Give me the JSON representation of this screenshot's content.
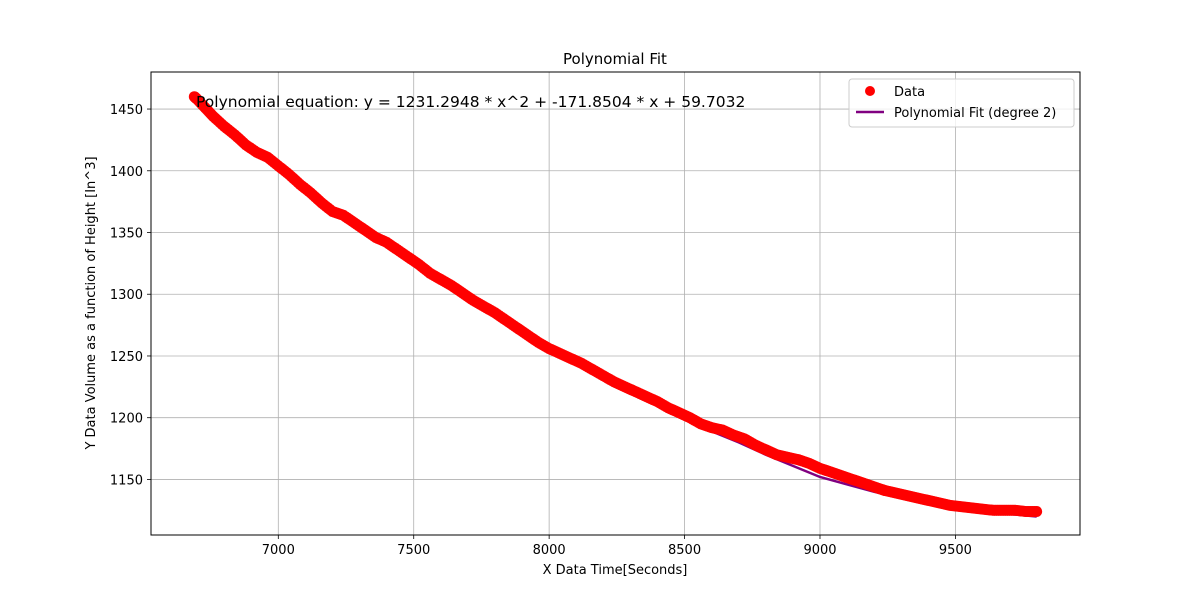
{
  "chart_data": {
    "type": "scatter",
    "title": "Polynomial Fit",
    "xlabel": "X Data Time[Seconds]",
    "ylabel": "Y Data Volume as a function of Height [In^3]",
    "annotation": "Polynomial equation: y = 1231.2948 * x^2 + -171.8504 * x + 59.7032",
    "xlim": [
      6530,
      9960
    ],
    "ylim": [
      1105,
      1480
    ],
    "xticks": [
      7000,
      7500,
      8000,
      8500,
      9000,
      9500
    ],
    "yticks": [
      1150,
      1200,
      1250,
      1300,
      1350,
      1400,
      1450
    ],
    "grid": true,
    "legend_position": "top-right",
    "series": [
      {
        "name": "Data",
        "kind": "scatter",
        "color": "#ff0000",
        "x": [
          6690,
          6700,
          6730,
          6760,
          6800,
          6840,
          6880,
          6920,
          6960,
          7000,
          7040,
          7080,
          7120,
          7160,
          7200,
          7240,
          7280,
          7320,
          7360,
          7400,
          7440,
          7480,
          7520,
          7560,
          7600,
          7640,
          7680,
          7720,
          7760,
          7800,
          7840,
          7880,
          7920,
          7960,
          8000,
          8040,
          8080,
          8120,
          8160,
          8200,
          8240,
          8280,
          8320,
          8360,
          8400,
          8440,
          8480,
          8520,
          8560,
          8600,
          8640,
          8680,
          8720,
          8760,
          8800,
          8840,
          8880,
          8920,
          8960,
          9000,
          9040,
          9080,
          9120,
          9160,
          9200,
          9240,
          9280,
          9320,
          9360,
          9400,
          9440,
          9480,
          9520,
          9560,
          9600,
          9640,
          9680,
          9720,
          9760,
          9800
        ],
        "y": [
          1460,
          1458,
          1451,
          1444,
          1436,
          1429,
          1421,
          1415,
          1411,
          1404,
          1397,
          1389,
          1382,
          1374,
          1367,
          1364,
          1358,
          1352,
          1346,
          1342,
          1336,
          1330,
          1324,
          1317,
          1312,
          1307,
          1301,
          1295,
          1290,
          1285,
          1279,
          1273,
          1267,
          1261,
          1256,
          1252,
          1248,
          1244,
          1239,
          1234,
          1229,
          1225,
          1221,
          1217,
          1213,
          1208,
          1204,
          1200,
          1195,
          1192,
          1190,
          1186,
          1183,
          1178,
          1174,
          1170,
          1168,
          1166,
          1163,
          1159,
          1156,
          1153,
          1150,
          1147,
          1144,
          1141,
          1139,
          1137,
          1135,
          1133,
          1131,
          1129,
          1128,
          1127,
          1126,
          1125,
          1125,
          1125,
          1124,
          1124
        ]
      },
      {
        "name": "Polynomial Fit (degree 2)",
        "kind": "line",
        "color": "#800080",
        "x": [
          6690,
          6800,
          6900,
          7000,
          7100,
          7200,
          7300,
          7400,
          7500,
          7600,
          7700,
          7800,
          7900,
          8000,
          8100,
          8200,
          8300,
          8400,
          8500,
          8600,
          8700,
          8800,
          8900,
          9000,
          9100,
          9200,
          9300,
          9400,
          9500,
          9600,
          9700,
          9800
        ],
        "y": [
          1460,
          1438,
          1419,
          1402,
          1385,
          1369,
          1354,
          1339,
          1325,
          1311,
          1297,
          1284,
          1271,
          1258,
          1246,
          1234,
          1222,
          1211,
          1200,
          1189,
          1180,
          1170,
          1161,
          1152,
          1146,
          1140,
          1135,
          1131,
          1127,
          1124,
          1122,
          1120
        ]
      }
    ]
  }
}
